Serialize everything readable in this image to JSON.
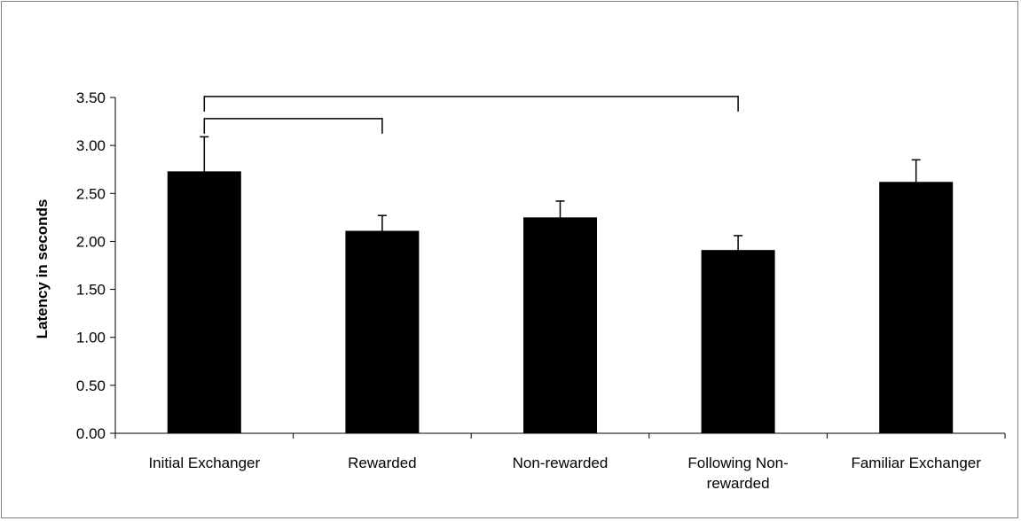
{
  "chart_data": {
    "type": "bar",
    "title": "",
    "xlabel": "",
    "ylabel": "Latency in seconds",
    "ylim": [
      0,
      3.5
    ],
    "ytick_step": 0.5,
    "ytick_labels": [
      "0.00",
      "0.50",
      "1.00",
      "1.50",
      "2.00",
      "2.50",
      "3.00",
      "3.50"
    ],
    "grid": false,
    "legend": "none",
    "bar_color": "#000000",
    "categories": [
      [
        "Initial Exchanger"
      ],
      [
        "Rewarded"
      ],
      [
        "Non-rewarded"
      ],
      [
        "Following Non-",
        "rewarded"
      ],
      [
        "Familiar Exchanger"
      ]
    ],
    "values": [
      2.73,
      2.11,
      2.25,
      1.91,
      2.62
    ],
    "error_upper": [
      0.36,
      0.16,
      0.17,
      0.15,
      0.23
    ],
    "brackets": [
      {
        "from": 0,
        "to": 1,
        "level": 3.28
      },
      {
        "from": 0,
        "to": 3,
        "level": 3.51
      }
    ]
  }
}
